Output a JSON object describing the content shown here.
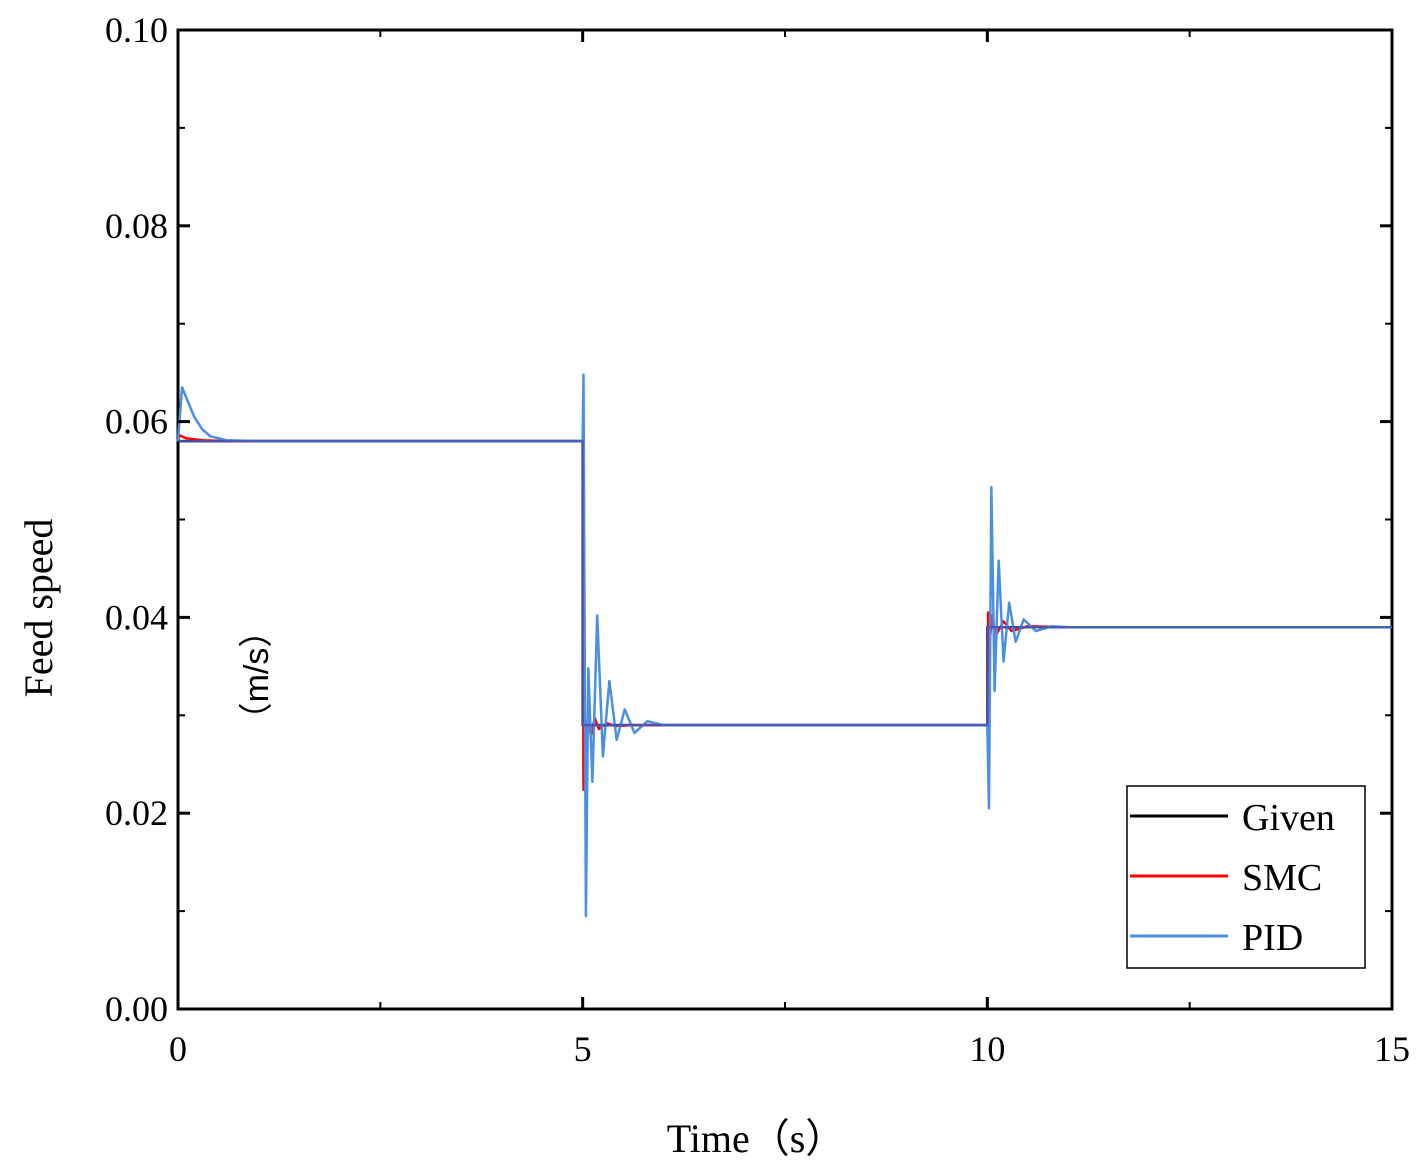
{
  "colors": {
    "given": "#000000",
    "smc": "#ff0000",
    "pid": "#4a90e2",
    "pid_overlap": "#4357b8",
    "axis": "#000000"
  },
  "chart_data": {
    "type": "line",
    "title": "",
    "xlabel": "Time（s）",
    "ylabel": "Feed speed",
    "ylabel_unit": "（m/s）",
    "xlim": [
      0,
      15
    ],
    "ylim": [
      0.0,
      0.1
    ],
    "x_ticks": [
      0,
      5,
      10,
      15
    ],
    "x_tick_labels": [
      "0",
      "5",
      "10",
      "15"
    ],
    "y_ticks": [
      0.0,
      0.02,
      0.04,
      0.06,
      0.08,
      0.1
    ],
    "y_tick_labels": [
      "0.00",
      "0.02",
      "0.04",
      "0.06",
      "0.08",
      "0.10"
    ],
    "grid": false,
    "legend_position": "bottom-right",
    "series": [
      {
        "name": "Given",
        "color": "#000000",
        "x": [
          0,
          5,
          5,
          10,
          10,
          15
        ],
        "y": [
          0.058,
          0.058,
          0.029,
          0.029,
          0.039,
          0.039
        ]
      },
      {
        "name": "SMC",
        "color": "#ff0000",
        "x": [
          0,
          0.02,
          0.1,
          0.3,
          0.6,
          5,
          5.01,
          5.02,
          5.04,
          5.07,
          5.1,
          5.15,
          5.2,
          5.3,
          5.4,
          5.6,
          10,
          10.01,
          10.03,
          10.06,
          10.1,
          10.2,
          10.3,
          10.5,
          11,
          15
        ],
        "y": [
          0.058,
          0.0586,
          0.0583,
          0.0581,
          0.058,
          0.058,
          0.0224,
          0.0298,
          0.027,
          0.0304,
          0.0279,
          0.0297,
          0.0286,
          0.0292,
          0.0289,
          0.029,
          0.029,
          0.0405,
          0.0376,
          0.0402,
          0.0381,
          0.0396,
          0.0386,
          0.0391,
          0.039,
          0.039
        ]
      },
      {
        "name": "PID",
        "color": "#4a90e2",
        "x": [
          0,
          0.05,
          0.1,
          0.2,
          0.3,
          0.4,
          0.6,
          1.0,
          5,
          5.01,
          5.04,
          5.07,
          5.12,
          5.18,
          5.25,
          5.33,
          5.42,
          5.52,
          5.64,
          5.8,
          6.0,
          10,
          10.02,
          10.05,
          10.09,
          10.14,
          10.2,
          10.27,
          10.35,
          10.45,
          10.6,
          10.8,
          11.0,
          15
        ],
        "y": [
          0.058,
          0.0635,
          0.0625,
          0.0605,
          0.0592,
          0.0585,
          0.0581,
          0.058,
          0.058,
          0.0648,
          0.0095,
          0.0348,
          0.0232,
          0.0402,
          0.0258,
          0.0335,
          0.0275,
          0.0306,
          0.0282,
          0.0294,
          0.029,
          0.029,
          0.0205,
          0.0533,
          0.0325,
          0.0458,
          0.0355,
          0.0415,
          0.0375,
          0.0398,
          0.0386,
          0.0391,
          0.039,
          0.039
        ]
      }
    ]
  }
}
